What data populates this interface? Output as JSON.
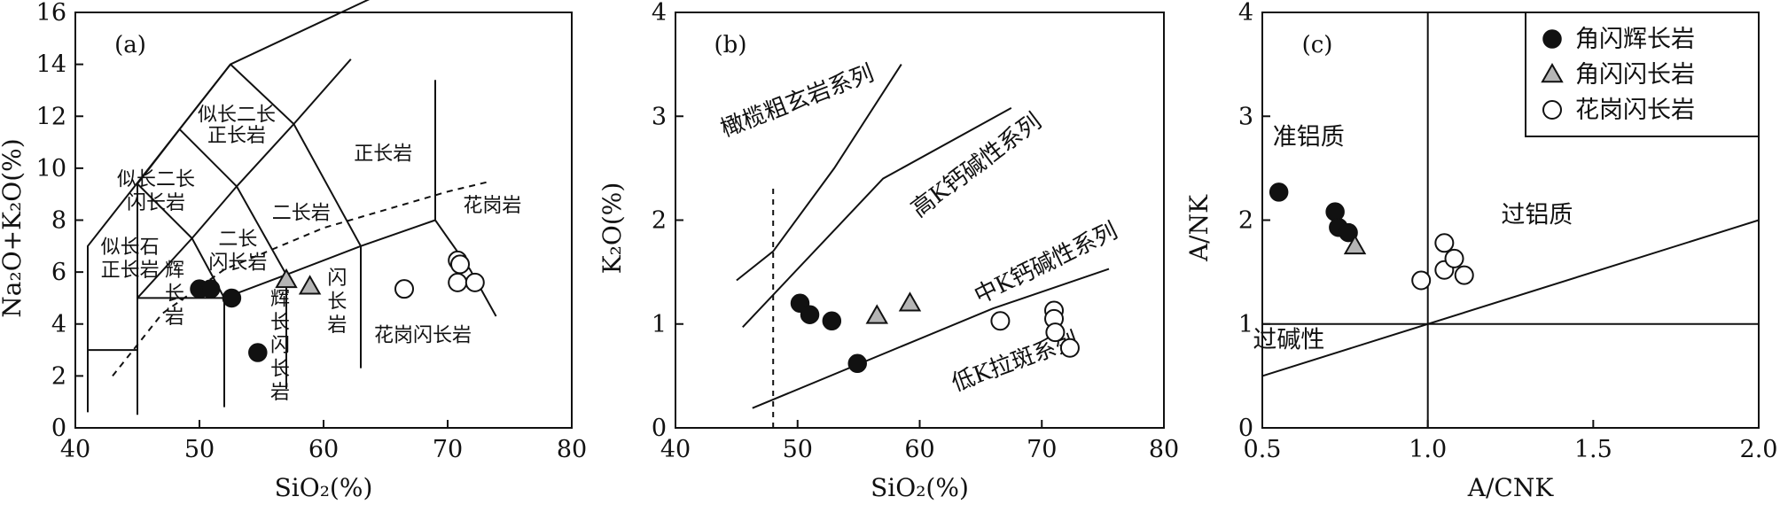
{
  "colors": {
    "ink": "#111111",
    "triangle_fill": "#b5b5b5",
    "circle_fill": "#ffffff"
  },
  "legend": [
    {
      "label": "角闪辉长岩",
      "marker": "filled-circle"
    },
    {
      "label": "角闪闪长岩",
      "marker": "open-triangle"
    },
    {
      "label": "花岗闪长岩",
      "marker": "open-circle"
    }
  ],
  "chart_data": [
    {
      "type": "scatter",
      "panel": "(a)",
      "xlabel": "SiO₂(%)",
      "ylabel": "Na₂O+K₂O(%)",
      "xlim": [
        40,
        80
      ],
      "ylim": [
        0,
        16
      ],
      "xticks": [
        40,
        50,
        60,
        70,
        80
      ],
      "yticks": [
        0,
        2,
        4,
        6,
        8,
        10,
        12,
        14,
        16
      ],
      "series": [
        {
          "name": "角闪辉长岩",
          "points": [
            [
              50.0,
              5.35
            ],
            [
              50.9,
              5.35
            ],
            [
              52.6,
              5.0
            ],
            [
              54.7,
              2.9
            ]
          ]
        },
        {
          "name": "角闪闪长岩",
          "points": [
            [
              57.0,
              5.7
            ],
            [
              58.9,
              5.45
            ]
          ]
        },
        {
          "name": "花岗闪长岩",
          "points": [
            [
              66.5,
              5.35
            ],
            [
              70.8,
              6.45
            ],
            [
              71.0,
              6.3
            ],
            [
              70.8,
              5.6
            ],
            [
              72.2,
              5.6
            ]
          ]
        }
      ],
      "field_labels": [
        {
          "text": "似长二长",
          "x": 53.0,
          "y": 12.1
        },
        {
          "text": "正长岩",
          "x": 53.0,
          "y": 11.3
        },
        {
          "text": "似长二长",
          "x": 46.5,
          "y": 9.6
        },
        {
          "text": "闪长岩",
          "x": 46.5,
          "y": 8.7
        },
        {
          "text": "二长岩",
          "x": 58.2,
          "y": 8.3
        },
        {
          "text": "正长岩",
          "x": 64.8,
          "y": 10.6
        },
        {
          "text": "花岗岩",
          "x": 73.6,
          "y": 8.6
        },
        {
          "text": "似长石",
          "x": 44.4,
          "y": 7.0
        },
        {
          "text": "正长岩",
          "x": 44.4,
          "y": 6.1
        },
        {
          "text": "二长",
          "x": 53.1,
          "y": 7.3
        },
        {
          "text": "闪长岩",
          "x": 53.1,
          "y": 6.4
        },
        {
          "text": "辉",
          "x": 48.0,
          "y": 6.1
        },
        {
          "text": "长",
          "x": 48.0,
          "y": 5.2
        },
        {
          "text": "岩",
          "x": 48.0,
          "y": 4.3
        },
        {
          "text": "辉",
          "x": 56.5,
          "y": 5.0
        },
        {
          "text": "长",
          "x": 56.5,
          "y": 4.1
        },
        {
          "text": "闪",
          "x": 56.5,
          "y": 3.2
        },
        {
          "text": "长",
          "x": 56.5,
          "y": 2.3
        },
        {
          "text": "岩",
          "x": 56.5,
          "y": 1.4
        },
        {
          "text": "闪",
          "x": 61.1,
          "y": 5.8
        },
        {
          "text": "长",
          "x": 61.1,
          "y": 4.9
        },
        {
          "text": "岩",
          "x": 61.1,
          "y": 4.0
        },
        {
          "text": "花岗闪长岩",
          "x": 68.0,
          "y": 3.6
        }
      ],
      "field_lines": [
        [
          [
            41,
            0.6
          ],
          [
            41,
            7
          ],
          [
            52.5,
            14
          ],
          [
            69,
            17.7
          ]
        ],
        [
          [
            41,
            3
          ],
          [
            45,
            3
          ]
        ],
        [
          [
            45,
            0.5
          ],
          [
            45,
            9.4
          ],
          [
            48.4,
            11.5
          ],
          [
            52.5,
            14
          ]
        ],
        [
          [
            45,
            5
          ],
          [
            49.4,
            7.3
          ],
          [
            53,
            9.3
          ],
          [
            57.6,
            11.7
          ],
          [
            52.5,
            14
          ]
        ],
        [
          [
            45,
            5
          ],
          [
            52,
            5
          ],
          [
            57,
            5.9
          ],
          [
            63,
            7
          ],
          [
            69,
            8
          ]
        ],
        [
          [
            52,
            0.8
          ],
          [
            52,
            5
          ]
        ],
        [
          [
            57,
            5.9
          ],
          [
            57,
            1.5
          ]
        ],
        [
          [
            63,
            7
          ],
          [
            63,
            2.3
          ]
        ],
        [
          [
            69,
            13.4
          ],
          [
            69,
            8
          ],
          [
            71.8,
            6.1
          ],
          [
            73.9,
            4.3
          ]
        ],
        [
          [
            49.4,
            7.3
          ],
          [
            45,
            9.4
          ]
        ],
        [
          [
            53,
            9.3
          ],
          [
            48.4,
            11.5
          ]
        ],
        [
          [
            53,
            9.3
          ],
          [
            57,
            5.9
          ]
        ],
        [
          [
            57.6,
            11.7
          ],
          [
            63,
            7
          ]
        ],
        [
          [
            57.6,
            11.7
          ],
          [
            62.2,
            14.2
          ]
        ],
        [
          [
            49.4,
            7.3
          ],
          [
            52,
            5
          ]
        ]
      ],
      "dashed_line": [
        [
          43,
          2
        ],
        [
          47,
          4.4
        ],
        [
          52,
          6.1
        ],
        [
          60,
          7.7
        ],
        [
          70,
          9.1
        ],
        [
          73.5,
          9.5
        ]
      ]
    },
    {
      "type": "scatter",
      "panel": "(b)",
      "xlabel": "SiO₂(%)",
      "ylabel": "K₂O(%)",
      "xlim": [
        40,
        80
      ],
      "ylim": [
        0,
        4
      ],
      "xticks": [
        40,
        50,
        60,
        70,
        80
      ],
      "yticks": [
        0,
        1,
        2,
        3,
        4
      ],
      "series": [
        {
          "name": "角闪辉长岩",
          "points": [
            [
              50.2,
              1.2
            ],
            [
              51.0,
              1.09
            ],
            [
              52.8,
              1.03
            ],
            [
              54.9,
              0.62
            ]
          ]
        },
        {
          "name": "角闪闪长岩",
          "points": [
            [
              56.5,
              1.08
            ],
            [
              59.2,
              1.2
            ]
          ]
        },
        {
          "name": "花岗闪长岩",
          "points": [
            [
              66.6,
              1.03
            ],
            [
              71.0,
              1.13
            ],
            [
              71.0,
              1.05
            ],
            [
              71.1,
              0.92
            ],
            [
              72.3,
              0.77
            ]
          ]
        }
      ],
      "series_lines": [
        [
          [
            45,
            1.42
          ],
          [
            48,
            1.7
          ],
          [
            53,
            2.5
          ],
          [
            58.5,
            3.5
          ]
        ],
        [
          [
            45.5,
            0.97
          ],
          [
            57,
            2.4
          ],
          [
            67.5,
            3.08
          ]
        ],
        [
          [
            46.3,
            0.19
          ],
          [
            66,
            1.15
          ],
          [
            75.5,
            1.53
          ]
        ]
      ],
      "dashed_line": [
        [
          48,
          0
        ],
        [
          48,
          2.32
        ]
      ],
      "series_labels": [
        {
          "text": "橄榄粗玄岩系列",
          "x": 50.2,
          "y": 3.08,
          "angle": -21
        },
        {
          "text": "高K钙碱性系列",
          "x": 65.0,
          "y": 2.47,
          "angle": -37
        },
        {
          "text": "中K钙碱性系列",
          "x": 70.6,
          "y": 1.52,
          "angle": -26
        },
        {
          "text": "低K拉斑系列",
          "x": 68.0,
          "y": 0.57,
          "angle": -20
        }
      ]
    },
    {
      "type": "scatter",
      "panel": "(c)",
      "xlabel": "A/CNK",
      "ylabel": "A/NK",
      "xlim": [
        0.5,
        2.0
      ],
      "ylim": [
        0,
        4
      ],
      "xticks": [
        "0.5",
        "1.0",
        "1.5",
        "2.0"
      ],
      "yticks": [
        0,
        1,
        2,
        3,
        4
      ],
      "series": [
        {
          "name": "角闪辉长岩",
          "points": [
            [
              0.55,
              2.27
            ],
            [
              0.72,
              2.08
            ],
            [
              0.73,
              1.93
            ],
            [
              0.76,
              1.88
            ]
          ]
        },
        {
          "name": "角闪闪长岩",
          "points": [
            [
              0.78,
              1.75
            ]
          ]
        },
        {
          "name": "花岗闪长岩",
          "points": [
            [
              0.98,
              1.42
            ],
            [
              1.05,
              1.78
            ],
            [
              1.05,
              1.52
            ],
            [
              1.08,
              1.63
            ],
            [
              1.11,
              1.47
            ]
          ]
        }
      ],
      "reference_lines": [
        [
          [
            1.0,
            0
          ],
          [
            1.0,
            4
          ]
        ],
        [
          [
            0.5,
            1.0
          ],
          [
            2.0,
            1.0
          ]
        ],
        [
          [
            0.5,
            0.5
          ],
          [
            2.0,
            2.0
          ]
        ]
      ],
      "region_labels": [
        {
          "text": "准铝质",
          "x": 0.64,
          "y": 2.8
        },
        {
          "text": "过铝质",
          "x": 1.33,
          "y": 2.05
        },
        {
          "text": "过碱性",
          "x": 0.58,
          "y": 0.85
        }
      ]
    }
  ]
}
